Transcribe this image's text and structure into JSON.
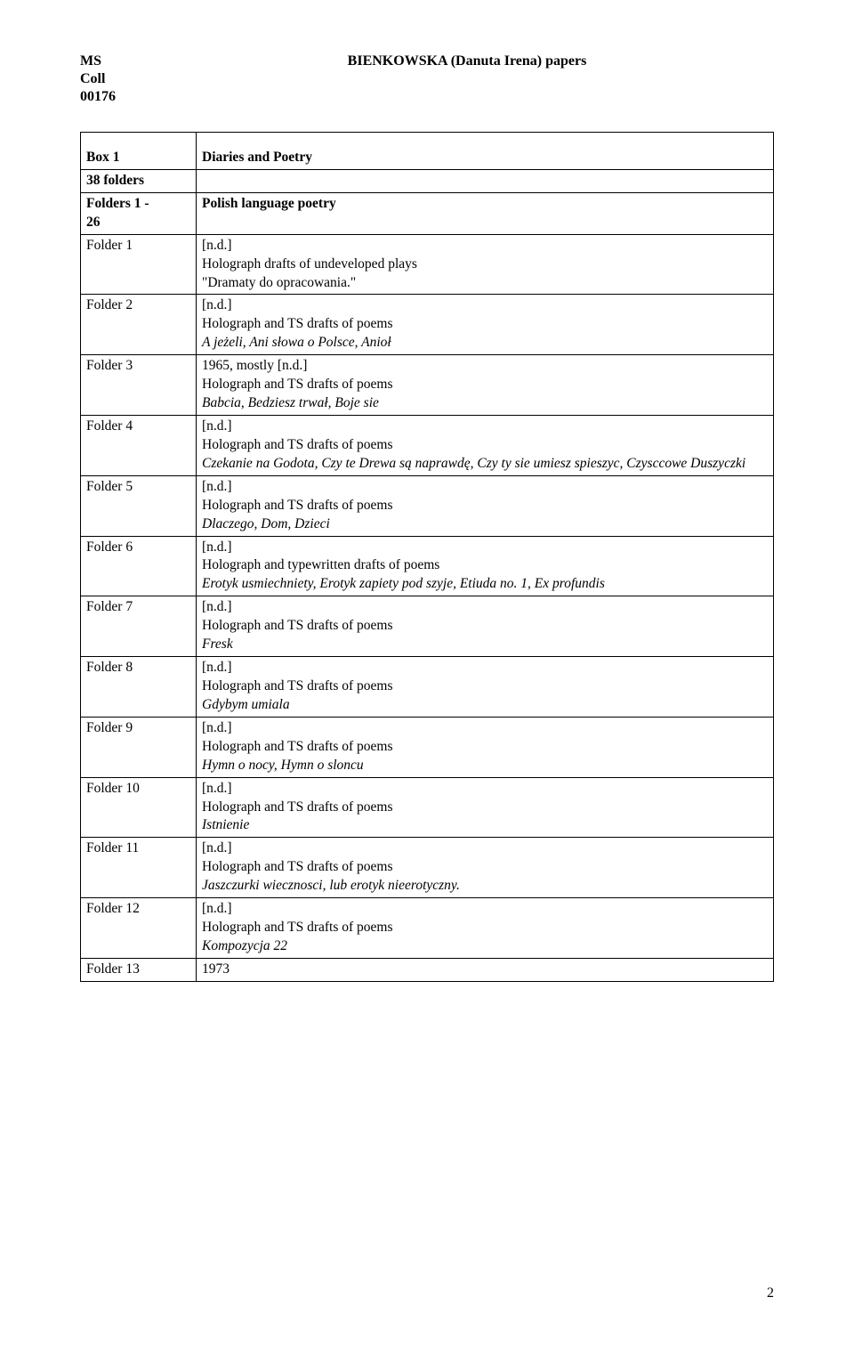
{
  "header": {
    "left1": "MS",
    "left2": "Coll",
    "left3": "00176",
    "title": "BIENKOWSKA (Danuta Irena) papers"
  },
  "pagenum": "2",
  "table": {
    "rows": [
      {
        "c1": [
          {
            "t": "Box 1",
            "b": true
          }
        ],
        "c2": [
          {
            "t": "Diaries and Poetry",
            "b": true
          }
        ],
        "tpad": true
      },
      {
        "c1": [
          {
            "t": "38 folders",
            "b": true
          }
        ],
        "c2": []
      },
      {
        "c1": [
          {
            "t": "Folders 1 -",
            "b": true
          },
          {
            "t": "26",
            "b": true
          }
        ],
        "c2": [
          {
            "t": "Polish language poetry",
            "b": true
          }
        ]
      },
      {
        "c1": [
          {
            "t": "Folder 1"
          }
        ],
        "c2": [
          {
            "t": "[n.d.]"
          },
          {
            "t": "Holograph drafts of undeveloped plays"
          },
          {
            "t": "\"Dramaty do opracowania.\""
          }
        ]
      },
      {
        "c1": [
          {
            "t": "Folder 2"
          }
        ],
        "c2": [
          {
            "t": "[n.d.]"
          },
          {
            "t": "Holograph and TS drafts of poems"
          },
          {
            "t": "A jeżeli, Ani słowa o Polsce, Anioł",
            "i": true
          }
        ]
      },
      {
        "c1": [
          {
            "t": "Folder 3"
          }
        ],
        "c2": [
          {
            "t": "1965, mostly [n.d.]"
          },
          {
            "t": "Holograph and TS drafts of poems"
          },
          {
            "t": "Babcia, Bedziesz trwał, Boje sie",
            "i": true
          }
        ]
      },
      {
        "c1": [
          {
            "t": "Folder 4"
          }
        ],
        "c2": [
          {
            "t": "[n.d.]"
          },
          {
            "t": "Holograph and TS drafts of poems"
          },
          {
            "t": "Czekanie na Godota, Czy te Drewa są naprawdę, Czy ty sie umiesz spieszyc, Czysccowe Duszyczki",
            "i": true
          }
        ]
      },
      {
        "c1": [
          {
            "t": "Folder 5"
          }
        ],
        "c2": [
          {
            "t": "[n.d.]"
          },
          {
            "t": "Holograph and TS drafts of poems"
          },
          {
            "t": "Dlaczego, Dom, Dzieci",
            "i": true
          }
        ]
      },
      {
        "c1": [
          {
            "t": "Folder 6"
          }
        ],
        "c2": [
          {
            "t": "[n.d.]"
          },
          {
            "t": "Holograph and typewritten drafts of poems"
          },
          {
            "t": "Erotyk usmiechniety, Erotyk zapiety pod szyje, Etiuda no. 1, Ex profundis",
            "i": true
          }
        ]
      },
      {
        "c1": [
          {
            "t": "Folder 7"
          }
        ],
        "c2": [
          {
            "t": "[n.d.]"
          },
          {
            "t": "Holograph and TS drafts of poems"
          },
          {
            "t": "Fresk",
            "i": true
          }
        ]
      },
      {
        "c1": [
          {
            "t": "Folder 8"
          }
        ],
        "c2": [
          {
            "t": "[n.d.]"
          },
          {
            "t": "Holograph and TS drafts of poems"
          },
          {
            "t": "Gdybym umiala",
            "i": true
          }
        ]
      },
      {
        "c1": [
          {
            "t": "Folder 9"
          }
        ],
        "c2": [
          {
            "t": "[n.d.]"
          },
          {
            "t": "Holograph and TS drafts of poems"
          },
          {
            "t": "Hymn o nocy, Hymn o sloncu",
            "i": true
          }
        ]
      },
      {
        "c1": [
          {
            "t": "Folder 10"
          }
        ],
        "c2": [
          {
            "t": "[n.d.]"
          },
          {
            "t": "Holograph and TS drafts of poems"
          },
          {
            "t": "Istnienie",
            "i": true
          }
        ]
      },
      {
        "c1": [
          {
            "t": "Folder 11"
          }
        ],
        "c2": [
          {
            "t": "[n.d.]"
          },
          {
            "t": "Holograph and TS drafts of poems"
          },
          {
            "t": "Jaszczurki wiecznosci, lub erotyk nieerotyczny.",
            "i": true
          }
        ]
      },
      {
        "c1": [
          {
            "t": "Folder 12"
          }
        ],
        "c2": [
          {
            "t": "[n.d.]"
          },
          {
            "t": "Holograph and TS drafts of poems"
          },
          {
            "t": "Kompozycja 22",
            "i": true
          }
        ]
      },
      {
        "c1": [
          {
            "t": "Folder 13"
          }
        ],
        "c2": [
          {
            "t": "1973"
          }
        ]
      }
    ]
  }
}
